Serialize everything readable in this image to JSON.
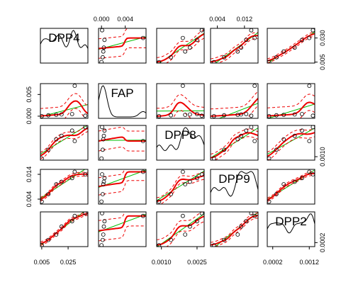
{
  "chart_data": {
    "type": "scatter",
    "title": "",
    "variables": [
      "DPP4",
      "FAP",
      "DPP8",
      "DPP9",
      "DPP2"
    ],
    "observations": {
      "DPP4": [
        0.005,
        0.01,
        0.016,
        0.02,
        0.028,
        0.03,
        0.038
      ],
      "FAP": [
        0.0,
        0.0002,
        0.0003,
        0.0004,
        0.0005,
        0.007,
        0.0001
      ],
      "DPP8": [
        0.0009,
        0.0014,
        0.002,
        0.0022,
        0.0025,
        0.0019,
        0.0027
      ],
      "DPP9": [
        0.003,
        0.006,
        0.01,
        0.011,
        0.0125,
        0.015,
        0.014
      ],
      "DPP2": [
        0.0001,
        0.0003,
        0.0005,
        0.0008,
        0.001,
        0.0012,
        0.0013
      ]
    },
    "ranges": {
      "DPP4": [
        0.004,
        0.04
      ],
      "FAP": [
        -0.0005,
        0.0075
      ],
      "DPP8": [
        0.0008,
        0.0028
      ],
      "DPP9": [
        0.002,
        0.016
      ],
      "DPP2": [
        5e-05,
        0.00135
      ]
    },
    "ticks": {
      "DPP4": {
        "side": "bottom",
        "labels": [
          "0.005",
          "0.025"
        ],
        "values": [
          0.005,
          0.025
        ]
      },
      "FAP": {
        "side": "left",
        "labels": [
          "0.000",
          "0.005"
        ],
        "values": [
          0.0,
          0.005
        ]
      },
      "DPP8": {
        "side": "bottom",
        "labels": [
          "0.0010",
          "0.0025"
        ],
        "values": [
          0.001,
          0.0025
        ]
      },
      "DPP9": {
        "side": "left",
        "labels": [
          "0.004",
          "0.014"
        ],
        "values": [
          0.004,
          0.014
        ]
      },
      "DPP2": {
        "side": "bottom",
        "labels": [
          "0.0002",
          "0.0012"
        ],
        "values": [
          0.0002,
          0.0012
        ]
      }
    },
    "top_ticks": {
      "FAP": {
        "labels": [
          "0.000",
          "0.004"
        ],
        "values": [
          0.0,
          0.004
        ]
      },
      "DPP9": {
        "labels": [
          "0.004",
          "0.012"
        ],
        "values": [
          0.004,
          0.012
        ]
      }
    },
    "right_ticks": {
      "DPP4": {
        "labels": [
          "0.005",
          "0.030"
        ],
        "values": [
          0.005,
          0.03
        ]
      },
      "DPP8": {
        "labels": [
          "0.0010"
        ],
        "values": [
          0.001
        ]
      },
      "DPP2": {
        "labels": [
          "0.0002"
        ],
        "values": [
          0.0002
        ]
      }
    },
    "colors": {
      "points": "#000000",
      "fit_line": "#00bb00",
      "smooth": "#ee0000",
      "spread": "#ee0000",
      "density": "#000000"
    },
    "grid": false,
    "legend": "none"
  }
}
